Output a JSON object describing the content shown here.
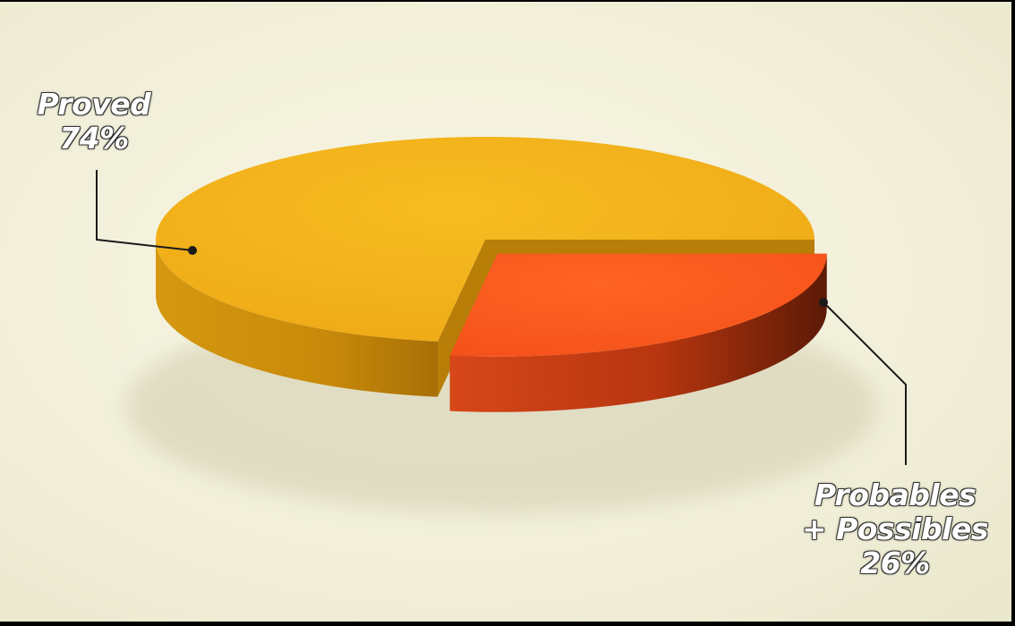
{
  "chart_data": {
    "type": "pie",
    "style": "3d-exploded",
    "slices": [
      {
        "name": "Proved",
        "value": 74,
        "percent_label": "74%",
        "color": "#f2b21a",
        "side_color": "#cf8f0c"
      },
      {
        "name": "Probables + Possibles",
        "name_lines": [
          "Probables",
          "+ Possibles"
        ],
        "value": 26,
        "percent_label": "26%",
        "color": "#fb5a1c",
        "side_color": "#b53a10",
        "exploded": true
      }
    ],
    "title": "",
    "legend": "none"
  }
}
